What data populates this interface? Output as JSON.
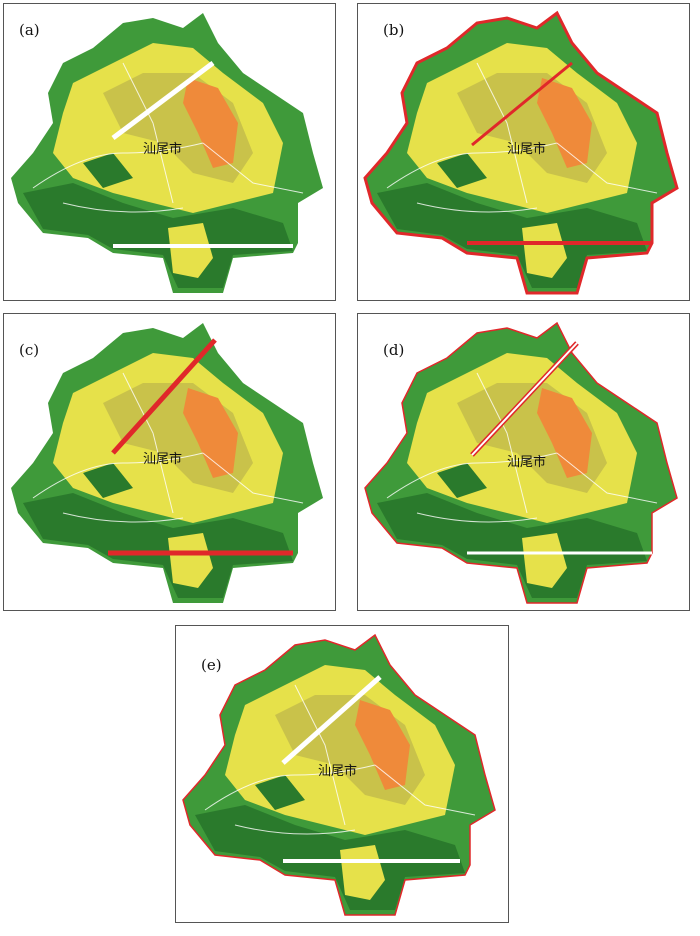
{
  "panels": [
    {
      "label": "(a)",
      "city": "汕尾市"
    },
    {
      "label": "(b)",
      "city": "汕尾市"
    },
    {
      "label": "(c)",
      "city": "汕尾市"
    },
    {
      "label": "(d)",
      "city": "汕尾市"
    },
    {
      "label": "(e)",
      "city": "汕尾市"
    }
  ]
}
